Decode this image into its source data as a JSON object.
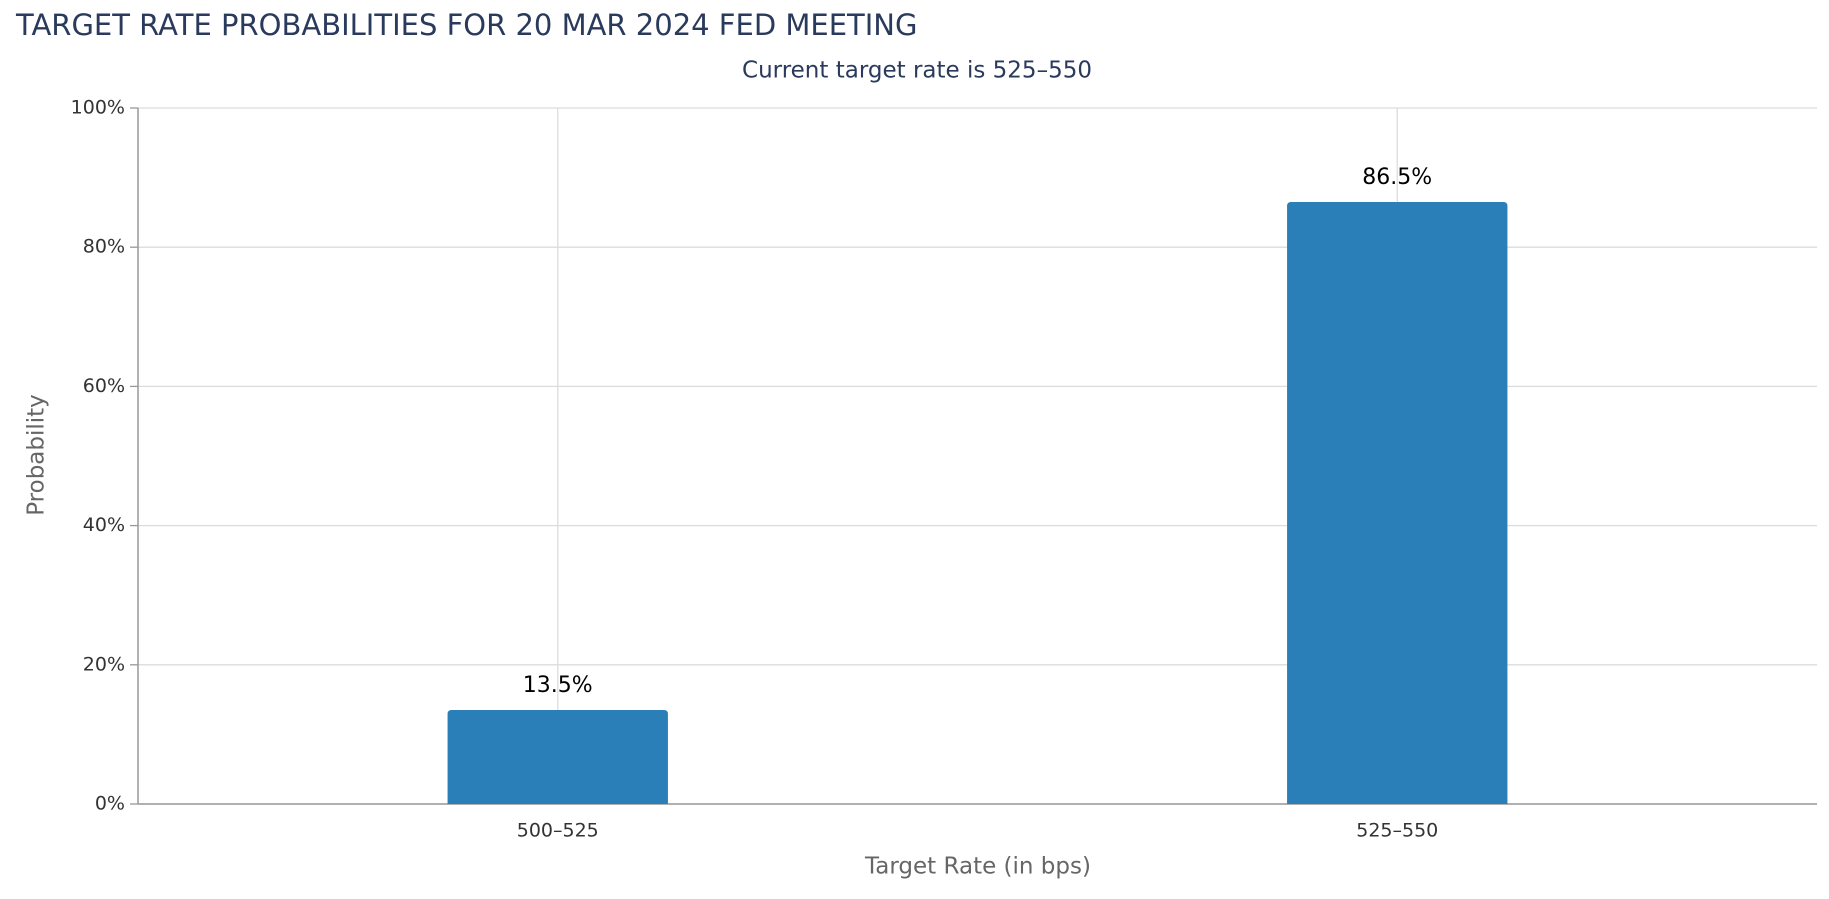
{
  "chart_data": {
    "type": "bar",
    "title": "TARGET RATE PROBABILITIES FOR 20 MAR 2024 FED MEETING",
    "subtitle": "Current target rate is 525–550",
    "x_label": "Target Rate (in bps)",
    "y_label": "Probability",
    "categories": [
      "500–525",
      "525–550"
    ],
    "values": [
      13.5,
      86.5
    ],
    "value_labels": [
      "13.5%",
      "86.5%"
    ],
    "color": "#2a7fb8",
    "ylim": [
      0,
      100
    ],
    "yticks": [
      {
        "value": 0,
        "label": "0%"
      },
      {
        "value": 20,
        "label": "20%"
      },
      {
        "value": 40,
        "label": "40%"
      },
      {
        "value": 60,
        "label": "60%"
      },
      {
        "value": 80,
        "label": "80%"
      },
      {
        "value": 100,
        "label": "100%"
      }
    ],
    "grid": true
  }
}
